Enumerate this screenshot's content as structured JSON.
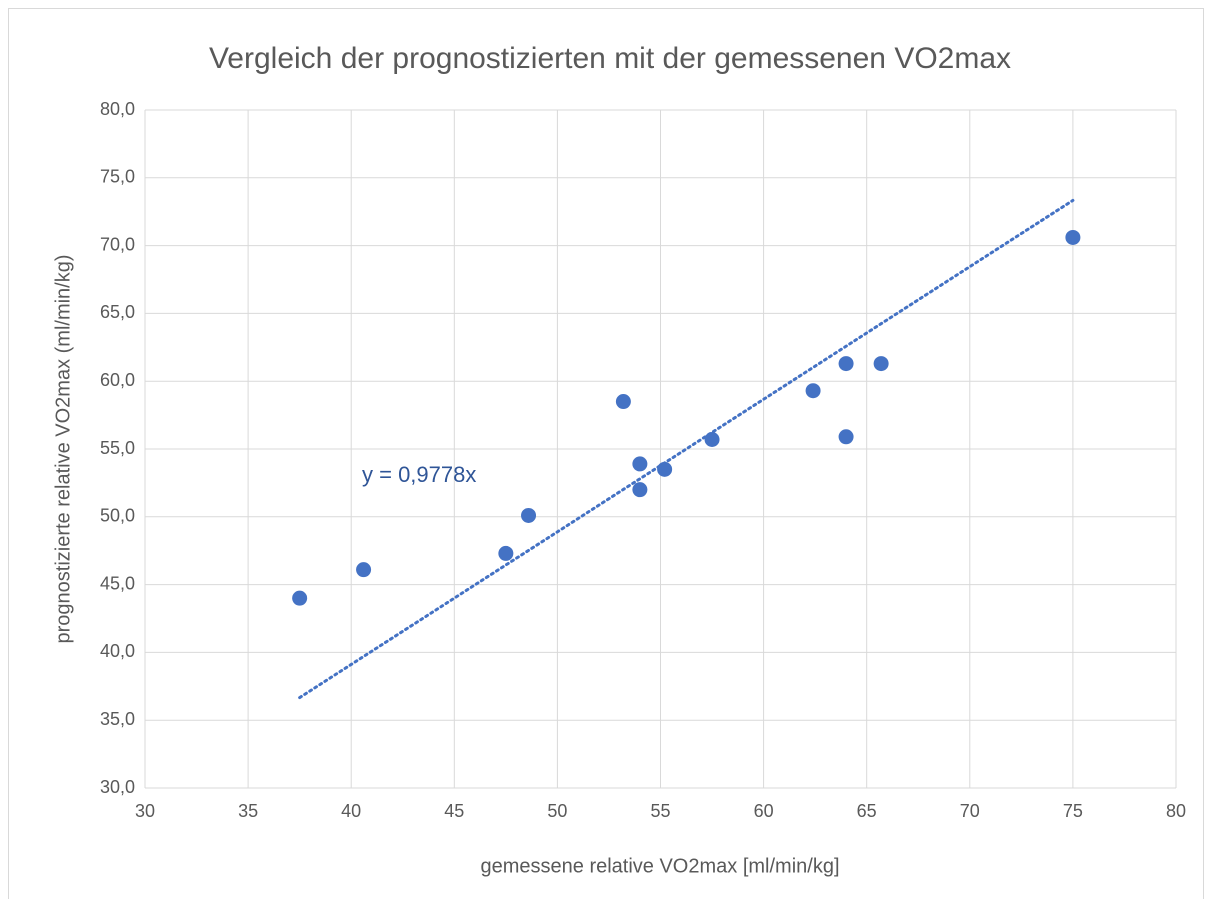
{
  "chart_data": {
    "type": "scatter",
    "title": "Vergleich der prognostizierten mit der gemessenen VO2max",
    "x_label": "gemessene relative VO2max [ml/min/kg]",
    "y_label": "prognostizierte relative VO2max (ml/min/kg)",
    "x": [
      37.5,
      40.6,
      47.5,
      48.6,
      53.2,
      54.0,
      54.0,
      55.2,
      57.5,
      62.4,
      64.0,
      64.0,
      65.7,
      75.0
    ],
    "values": [
      44.0,
      46.1,
      47.3,
      50.1,
      58.5,
      53.9,
      52.0,
      53.5,
      55.7,
      59.3,
      61.3,
      55.9,
      61.3,
      70.6
    ],
    "color": "#4472c4",
    "trendline": {
      "slope": 0.9778,
      "label": "y = 0,9778x"
    },
    "xlim": [
      30,
      80
    ],
    "xticks": [
      30,
      35,
      40,
      45,
      50,
      55,
      60,
      65,
      70,
      75,
      80
    ],
    "ylim": [
      30,
      80
    ],
    "yticks": [
      {
        "value": 30,
        "label": "30,0"
      },
      {
        "value": 35,
        "label": "35,0"
      },
      {
        "value": 40,
        "label": "40,0"
      },
      {
        "value": 45,
        "label": "45,0"
      },
      {
        "value": 50,
        "label": "50,0"
      },
      {
        "value": 55,
        "label": "55,0"
      },
      {
        "value": 60,
        "label": "60,0"
      },
      {
        "value": 65,
        "label": "65,0"
      },
      {
        "value": 70,
        "label": "70,0"
      },
      {
        "value": 75,
        "label": "75,0"
      },
      {
        "value": 80,
        "label": "80,0"
      }
    ],
    "grid": true
  }
}
